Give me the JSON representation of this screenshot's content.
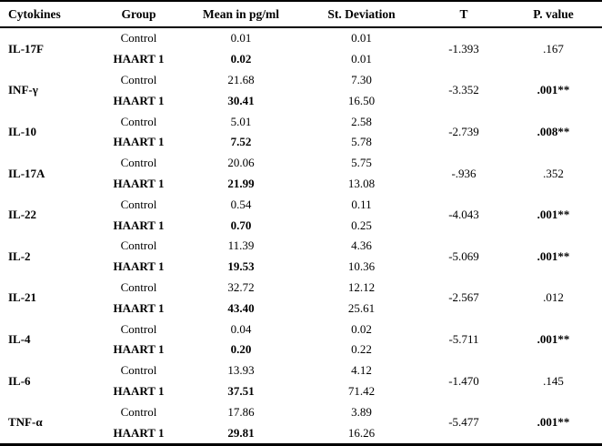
{
  "table": {
    "headers": {
      "cytokines": "Cytokines",
      "group": "Group",
      "mean": "Mean in pg/ml",
      "sd": "St. Deviation",
      "t": "T",
      "p": "P. value"
    },
    "group_labels": {
      "control": "Control",
      "haart": "HAART 1"
    },
    "rows": [
      {
        "cytokine": "IL-17F",
        "control": {
          "mean": "0.01",
          "sd": "0.01"
        },
        "haart": {
          "mean": "0.02",
          "sd": "0.01"
        },
        "t": "-1.393",
        "p": ".167",
        "significant": false
      },
      {
        "cytokine": "INF-γ",
        "control": {
          "mean": "21.68",
          "sd": "7.30"
        },
        "haart": {
          "mean": "30.41",
          "sd": "16.50"
        },
        "t": "-3.352",
        "p": ".001**",
        "significant": true
      },
      {
        "cytokine": "IL-10",
        "control": {
          "mean": "5.01",
          "sd": "2.58"
        },
        "haart": {
          "mean": "7.52",
          "sd": "5.78"
        },
        "t": "-2.739",
        "p": ".008**",
        "significant": true
      },
      {
        "cytokine": "IL-17A",
        "control": {
          "mean": "20.06",
          "sd": "5.75"
        },
        "haart": {
          "mean": "21.99",
          "sd": "13.08"
        },
        "t": "-.936",
        "p": ".352",
        "significant": false
      },
      {
        "cytokine": "IL-22",
        "control": {
          "mean": "0.54",
          "sd": "0.11"
        },
        "haart": {
          "mean": "0.70",
          "sd": "0.25"
        },
        "t": "-4.043",
        "p": ".001**",
        "significant": true
      },
      {
        "cytokine": "IL-2",
        "control": {
          "mean": "11.39",
          "sd": "4.36"
        },
        "haart": {
          "mean": "19.53",
          "sd": "10.36"
        },
        "t": "-5.069",
        "p": ".001**",
        "significant": true
      },
      {
        "cytokine": "IL-21",
        "control": {
          "mean": "32.72",
          "sd": "12.12"
        },
        "haart": {
          "mean": "43.40",
          "sd": "25.61"
        },
        "t": "-2.567",
        "p": ".012",
        "significant": false
      },
      {
        "cytokine": "IL-4",
        "control": {
          "mean": "0.04",
          "sd": "0.02"
        },
        "haart": {
          "mean": "0.20",
          "sd": "0.22"
        },
        "t": "-5.711",
        "p": ".001**",
        "significant": true
      },
      {
        "cytokine": "IL-6",
        "control": {
          "mean": "13.93",
          "sd": "4.12"
        },
        "haart": {
          "mean": "37.51",
          "sd": "71.42"
        },
        "t": "-1.470",
        "p": ".145",
        "significant": false
      },
      {
        "cytokine": "TNF-α",
        "control": {
          "mean": "17.86",
          "sd": "3.89"
        },
        "haart": {
          "mean": "29.81",
          "sd": "16.26"
        },
        "t": "-5.477",
        "p": ".001**",
        "significant": true
      }
    ]
  }
}
